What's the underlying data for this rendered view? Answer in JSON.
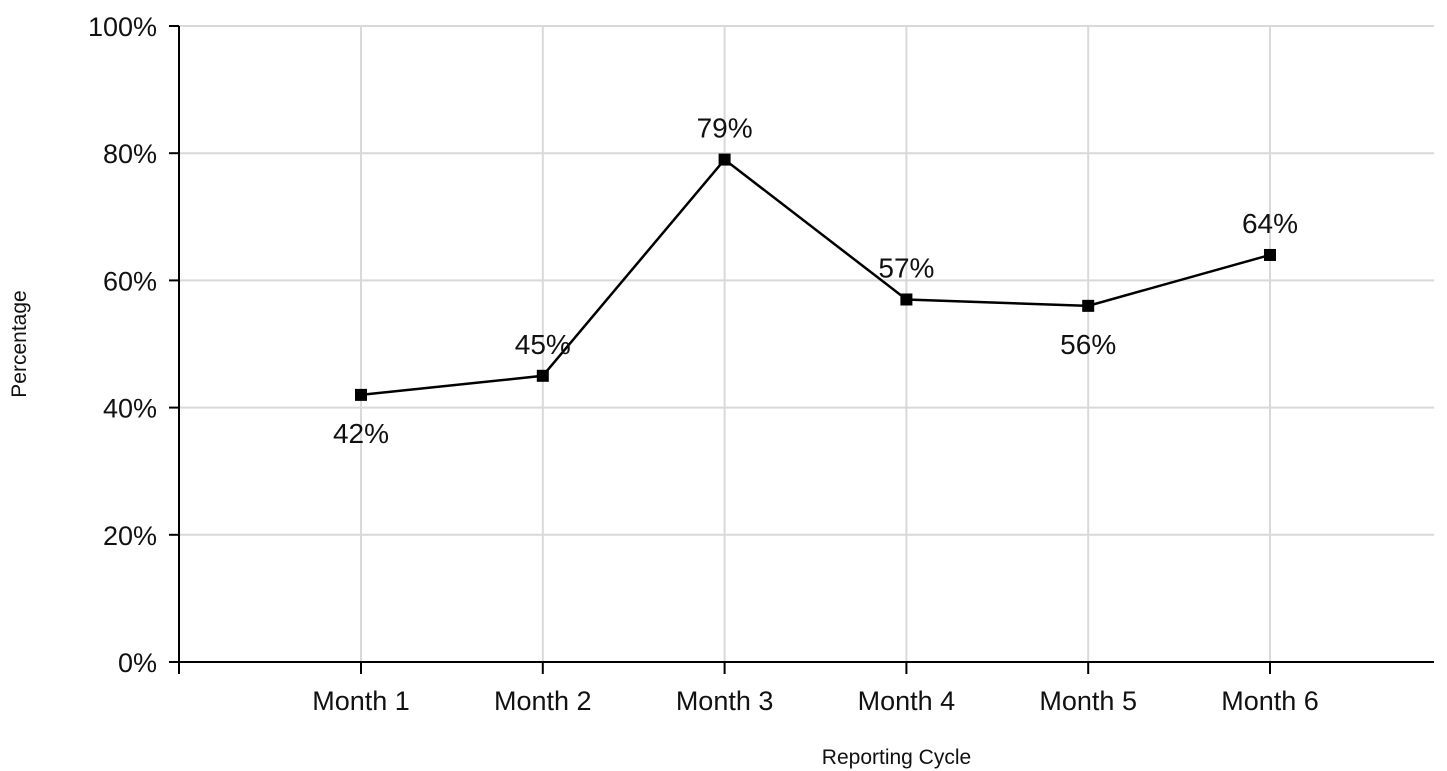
{
  "chart_data": {
    "type": "line",
    "title": "",
    "xlabel": "Reporting Cycle",
    "ylabel": "Percentage",
    "categories": [
      "Month 1",
      "Month 2",
      "Month 3",
      "Month 4",
      "Month 5",
      "Month 6"
    ],
    "series": [
      {
        "values": [
          42,
          45,
          79,
          57,
          56,
          64
        ],
        "data_labels": [
          "42%",
          "45%",
          "79%",
          "57%",
          "56%",
          "64%"
        ],
        "color": "#000000",
        "marker": "square"
      }
    ],
    "ylim": [
      0,
      100
    ],
    "y_ticks": [
      0,
      20,
      40,
      60,
      80,
      100
    ],
    "y_tick_labels": [
      "0%",
      "20%",
      "40%",
      "60%",
      "80%",
      "100%"
    ],
    "grid": true,
    "grid_color": "#d9d9d9",
    "legend": "none"
  }
}
